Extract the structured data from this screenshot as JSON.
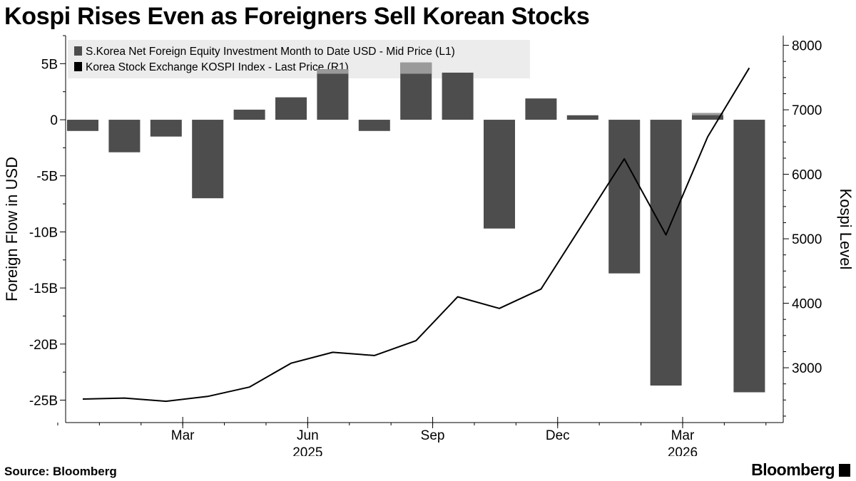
{
  "title": "Kospi Rises Even as Foreigners Sell Korean Stocks",
  "source": "Source: Bloomberg",
  "brand": "Bloomberg",
  "chart_data": {
    "type": "bar",
    "x_ticks": [
      {
        "label": "Mar",
        "year": "",
        "index": 2.4
      },
      {
        "label": "Jun",
        "year": "2025",
        "index": 5.4
      },
      {
        "label": "Sep",
        "year": "",
        "index": 8.4
      },
      {
        "label": "Dec",
        "year": "",
        "index": 11.4
      },
      {
        "label": "Mar",
        "year": "2026",
        "index": 14.4
      }
    ],
    "categories": [
      "2025-01",
      "2025-02",
      "2025-03",
      "2025-04",
      "2025-05",
      "2025-06",
      "2025-07",
      "2025-08",
      "2025-09",
      "2025-10",
      "2025-11",
      "2025-12",
      "2026-01",
      "2026-02",
      "2026-03",
      "2026-04",
      "2026-05"
    ],
    "series": [
      {
        "name": "S.Korea Net Foreign Equity Investment Month to Date USD - Mid Price (L1)",
        "axis": "left",
        "type": "bar",
        "color": "#4d4d4d",
        "values": [
          -1.0,
          -2.9,
          -1.5,
          -7.0,
          0.9,
          2.0,
          4.5,
          -1.0,
          5.1,
          4.2,
          -9.7,
          1.9,
          0.4,
          -13.7,
          -23.7,
          0.6,
          -24.3
        ],
        "prior_values": [
          null,
          null,
          null,
          null,
          null,
          null,
          4.1,
          null,
          4.1,
          null,
          null,
          null,
          null,
          null,
          null,
          0.4,
          null
        ]
      },
      {
        "name": "Korea Stock Exchange KOSPI Index - Last Price (R1)",
        "axis": "right",
        "type": "line",
        "color": "#000000",
        "values": [
          2515,
          2530,
          2480,
          2555,
          2700,
          3070,
          3240,
          3190,
          3420,
          4100,
          3920,
          4220,
          null,
          6240,
          5060,
          6580,
          7650
        ]
      }
    ],
    "ylabel": "Foreign Flow in USD",
    "y2label": "Kospi Level",
    "ylim": [
      -27,
      7.5
    ],
    "y2lim": [
      2150,
      8150
    ],
    "yticks": [
      5,
      0,
      -5,
      -10,
      -15,
      -20,
      -25
    ],
    "ytick_labels": [
      "5B",
      "0",
      "-5B",
      "-10B",
      "-15B",
      "-20B",
      "-25B"
    ],
    "y2ticks": [
      8000,
      7000,
      6000,
      5000,
      4000,
      3000
    ],
    "legend_position": "top-left",
    "grid": false,
    "colors": {
      "bar": "#4d4d4d",
      "bar_prior": "#9a9a9a",
      "line": "#000000",
      "legend_bg": "#ececec"
    }
  }
}
